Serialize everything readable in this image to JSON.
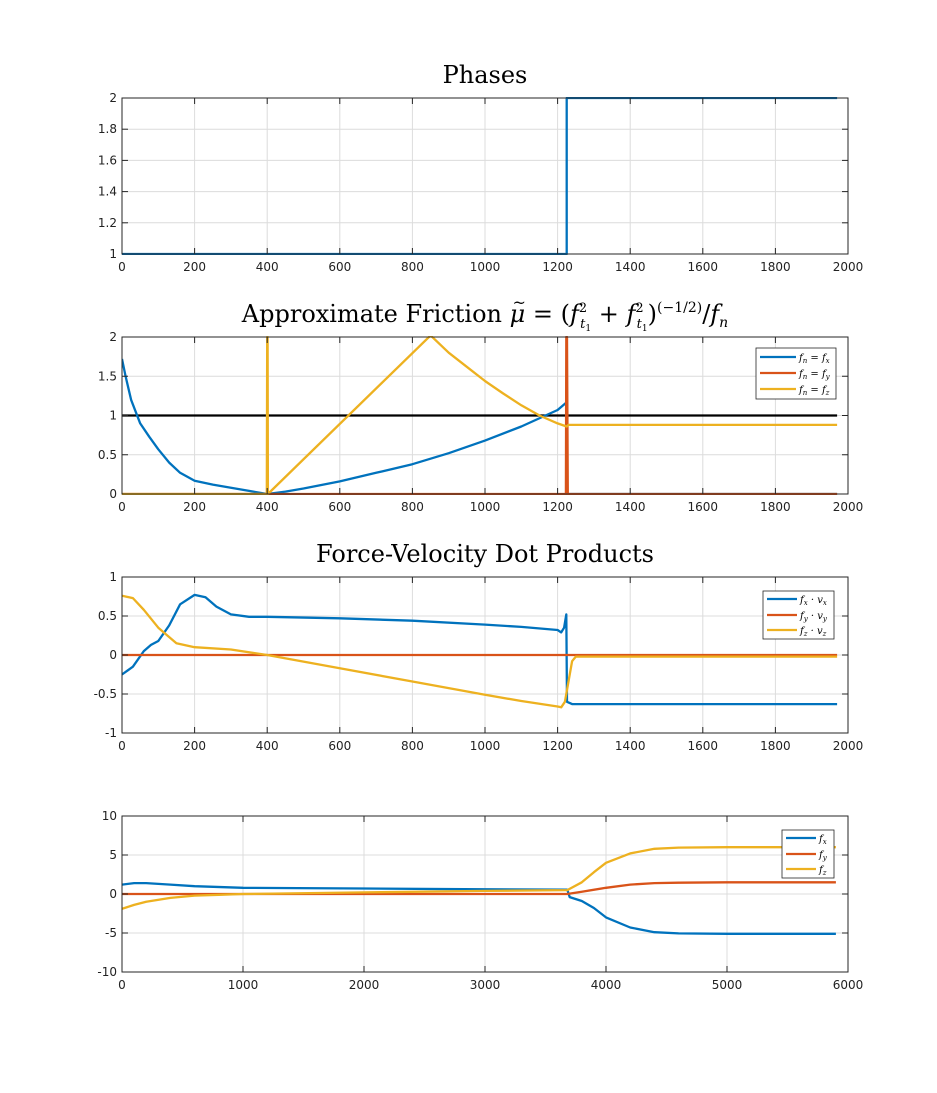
{
  "colors": {
    "blue": "#0072BD",
    "red": "#D95319",
    "yellow": "#EDB120",
    "black": "#000000"
  },
  "chart_data": [
    {
      "type": "line",
      "title": "Phases",
      "xlim": [
        0,
        2000
      ],
      "ylim": [
        1,
        2
      ],
      "xticks": [
        0,
        200,
        400,
        600,
        800,
        1000,
        1200,
        1400,
        1600,
        1800,
        2000
      ],
      "yticks": [
        1,
        1.2,
        1.4,
        1.6,
        1.8,
        2
      ],
      "ytick_labels": [
        "1",
        "1.2",
        "1.4",
        "1.6",
        "1.8",
        "2"
      ],
      "grid": true,
      "series": [
        {
          "color": "#0072BD",
          "x": [
            0,
            1225,
            1225,
            1970
          ],
          "y": [
            1,
            1,
            2,
            2
          ]
        }
      ]
    },
    {
      "type": "line",
      "title_parts": {
        "a": "Approximate Friction ",
        "mu": "μ",
        "tilde": "~",
        "eq": " = (",
        "f": "f",
        "t": "t",
        "one": "1",
        "two": "2",
        "plus": " + ",
        "close": ")",
        "exp": "(−1/2)",
        "slash": "/",
        "n": "n"
      },
      "xlim": [
        0,
        2000
      ],
      "ylim": [
        0,
        2
      ],
      "xticks": [
        0,
        200,
        400,
        600,
        800,
        1000,
        1200,
        1400,
        1600,
        1800,
        2000
      ],
      "yticks": [
        0,
        0.5,
        1,
        1.5,
        2
      ],
      "ytick_labels": [
        "0",
        "0.5",
        "1",
        "1.5",
        "2"
      ],
      "grid": true,
      "legend": {
        "placement": "top-right",
        "entries": [
          {
            "lhs": "f",
            "lsub": "n",
            "rhs": "f",
            "rsub": "x"
          },
          {
            "lhs": "f",
            "lsub": "n",
            "rhs": "f",
            "rsub": "y"
          },
          {
            "lhs": "f",
            "lsub": "n",
            "rhs": "f",
            "rsub": "z"
          }
        ]
      },
      "series": [
        {
          "color": "#000000",
          "x": [
            0,
            1970
          ],
          "y": [
            1,
            1
          ]
        },
        {
          "color": "#0072BD",
          "x": [
            0,
            10,
            25,
            50,
            75,
            100,
            130,
            160,
            200,
            250,
            300,
            350,
            400,
            450,
            500,
            600,
            700,
            800,
            900,
            1000,
            1100,
            1200,
            1225,
            1226,
            1970
          ],
          "y": [
            1.72,
            1.5,
            1.2,
            0.9,
            0.73,
            0.57,
            0.4,
            0.27,
            0.17,
            0.12,
            0.08,
            0.04,
            0.0,
            0.03,
            0.07,
            0.16,
            0.27,
            0.38,
            0.52,
            0.68,
            0.86,
            1.07,
            1.17,
            0.0,
            0.0
          ]
        },
        {
          "color": "#D95319",
          "x": [
            0,
            1223,
            1224,
            1226,
            1228,
            1970
          ],
          "y": [
            0,
            0,
            2,
            2,
            0,
            0
          ]
        },
        {
          "color": "#EDB120",
          "x": [
            0,
            399,
            400,
            401,
            402,
            850,
            900,
            950,
            1000,
            1050,
            1100,
            1150,
            1200,
            1225,
            1230,
            1970
          ],
          "y": [
            0,
            0,
            2,
            2,
            0,
            2.02,
            1.8,
            1.62,
            1.44,
            1.28,
            1.13,
            1.0,
            0.9,
            0.86,
            0.88,
            0.88
          ]
        }
      ]
    },
    {
      "type": "line",
      "title": "Force-Velocity Dot Products",
      "xlim": [
        0,
        2000
      ],
      "ylim": [
        -1,
        1
      ],
      "xticks": [
        0,
        200,
        400,
        600,
        800,
        1000,
        1200,
        1400,
        1600,
        1800,
        2000
      ],
      "yticks": [
        -1,
        -0.5,
        0,
        0.5,
        1
      ],
      "ytick_labels": [
        "-1",
        "-0.5",
        "0",
        "0.5",
        "1"
      ],
      "grid": true,
      "legend": {
        "placement": "top-right",
        "entries": [
          {
            "a": "f",
            "asub": "x",
            "b": "v",
            "bsub": "x"
          },
          {
            "a": "f",
            "asub": "y",
            "b": "v",
            "bsub": "y"
          },
          {
            "a": "f",
            "asub": "z",
            "b": "v",
            "bsub": "z"
          }
        ]
      },
      "series": [
        {
          "color": "#0072BD",
          "x": [
            0,
            30,
            60,
            80,
            100,
            130,
            160,
            200,
            230,
            260,
            300,
            350,
            400,
            600,
            800,
            1000,
            1100,
            1200,
            1210,
            1218,
            1224,
            1226,
            1240,
            1970
          ],
          "y": [
            -0.25,
            -0.15,
            0.05,
            0.13,
            0.18,
            0.38,
            0.65,
            0.77,
            0.74,
            0.62,
            0.52,
            0.49,
            0.49,
            0.47,
            0.44,
            0.39,
            0.36,
            0.32,
            0.29,
            0.35,
            0.52,
            -0.6,
            -0.63,
            -0.63
          ]
        },
        {
          "color": "#D95319",
          "x": [
            0,
            1970
          ],
          "y": [
            0,
            0
          ]
        },
        {
          "color": "#EDB120",
          "x": [
            0,
            30,
            60,
            100,
            150,
            200,
            300,
            400,
            600,
            800,
            1000,
            1100,
            1200,
            1210,
            1220,
            1240,
            1250,
            1970
          ],
          "y": [
            0.76,
            0.73,
            0.58,
            0.35,
            0.15,
            0.1,
            0.07,
            0.0,
            -0.17,
            -0.34,
            -0.51,
            -0.59,
            -0.66,
            -0.67,
            -0.6,
            -0.08,
            -0.02,
            -0.02
          ]
        }
      ]
    },
    {
      "type": "line",
      "xlim": [
        0,
        6000
      ],
      "ylim": [
        -10,
        10
      ],
      "xticks": [
        0,
        1000,
        2000,
        3000,
        4000,
        5000,
        6000
      ],
      "yticks": [
        -10,
        -5,
        0,
        5,
        10
      ],
      "ytick_labels": [
        "-10",
        "-5",
        "0",
        "5",
        "10"
      ],
      "grid": true,
      "legend": {
        "placement": "top-right",
        "entries": [
          {
            "a": "f",
            "asub": "x"
          },
          {
            "a": "f",
            "asub": "y"
          },
          {
            "a": "f",
            "asub": "z"
          }
        ]
      },
      "series": [
        {
          "color": "#0072BD",
          "x": [
            0,
            100,
            200,
            400,
            600,
            1000,
            2000,
            3000,
            3680,
            3700,
            3800,
            3900,
            4000,
            4200,
            4400,
            4600,
            5000,
            5900
          ],
          "y": [
            1.2,
            1.4,
            1.4,
            1.2,
            1.0,
            0.8,
            0.7,
            0.6,
            0.55,
            -0.4,
            -0.9,
            -1.8,
            -3.0,
            -4.3,
            -4.9,
            -5.05,
            -5.1,
            -5.1
          ]
        },
        {
          "color": "#D95319",
          "x": [
            0,
            1000,
            2000,
            3000,
            3680,
            3800,
            4000,
            4200,
            4400,
            4600,
            5000,
            5900
          ],
          "y": [
            0,
            0,
            0,
            0,
            0,
            0.3,
            0.8,
            1.2,
            1.4,
            1.45,
            1.5,
            1.5
          ]
        },
        {
          "color": "#EDB120",
          "x": [
            0,
            100,
            200,
            400,
            600,
            800,
            1000,
            2000,
            3000,
            3680,
            3800,
            3900,
            4000,
            4200,
            4400,
            4600,
            5000,
            5900
          ],
          "y": [
            -1.9,
            -1.4,
            -1.0,
            -0.5,
            -0.2,
            -0.1,
            0.0,
            0.2,
            0.4,
            0.5,
            1.5,
            2.8,
            4.0,
            5.2,
            5.8,
            5.95,
            6.0,
            6.0
          ]
        }
      ]
    }
  ]
}
